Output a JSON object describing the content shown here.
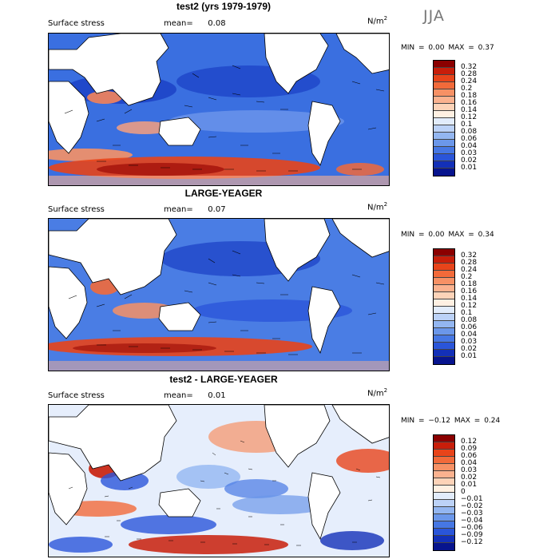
{
  "season": "JJA",
  "panels": [
    {
      "title": "test2 (yrs 1979-1979)",
      "field": "Surface stress",
      "mean_label": "mean=",
      "mean_value": "0.08",
      "units_base": "N/m",
      "units_exp": "2",
      "minmax": "MIN =    0.00 MAX =    0.37",
      "colorbar": {
        "labels": [
          "0.32",
          "0.28",
          "0.24",
          "0.2",
          "0.18",
          "0.16",
          "0.14",
          "0.12",
          "0.1",
          "0.08",
          "0.06",
          "0.04",
          "0.03",
          "0.02",
          "0.01"
        ],
        "colors": [
          "#8b0000",
          "#c81e0a",
          "#e8441a",
          "#f26a3a",
          "#f79165",
          "#fbb28f",
          "#fdd3b8",
          "#fff0e2",
          "#e2ecfb",
          "#bcd2f7",
          "#93b6f1",
          "#6b97ea",
          "#4677e4",
          "#2a55d9",
          "#1330b8",
          "#07148e"
        ]
      }
    },
    {
      "title": "LARGE-YEAGER",
      "field": "Surface stress",
      "mean_label": "mean=",
      "mean_value": "0.07",
      "units_base": "N/m",
      "units_exp": "2",
      "minmax": "MIN =    0.00 MAX =    0.34",
      "colorbar": {
        "labels": [
          "0.32",
          "0.28",
          "0.24",
          "0.2",
          "0.18",
          "0.16",
          "0.14",
          "0.12",
          "0.1",
          "0.08",
          "0.06",
          "0.04",
          "0.03",
          "0.02",
          "0.01"
        ],
        "colors": [
          "#8b0000",
          "#c81e0a",
          "#e8441a",
          "#f26a3a",
          "#f79165",
          "#fbb28f",
          "#fdd3b8",
          "#fff0e2",
          "#e2ecfb",
          "#bcd2f7",
          "#93b6f1",
          "#6b97ea",
          "#4677e4",
          "#2a55d9",
          "#1330b8",
          "#07148e"
        ]
      }
    },
    {
      "title": "test2 - LARGE-YEAGER",
      "field": "Surface stress",
      "mean_label": "mean=",
      "mean_value": "0.01",
      "units_base": "N/m",
      "units_exp": "2",
      "minmax": "MIN =  −0.12 MAX =    0.24",
      "colorbar": {
        "labels": [
          "0.12",
          "0.09",
          "0.06",
          "0.04",
          "0.03",
          "0.02",
          "0.01",
          "0",
          "−0.01",
          "−0.02",
          "−0.03",
          "−0.04",
          "−0.06",
          "−0.09",
          "−0.12"
        ],
        "colors": [
          "#8b0000",
          "#c81e0a",
          "#e8441a",
          "#f26a3a",
          "#f79165",
          "#fbb28f",
          "#fdd3b8",
          "#fff0e2",
          "#e2ecfb",
          "#bcd2f7",
          "#93b6f1",
          "#6b97ea",
          "#4677e4",
          "#2a55d9",
          "#1330b8",
          "#07148e"
        ]
      }
    }
  ]
}
